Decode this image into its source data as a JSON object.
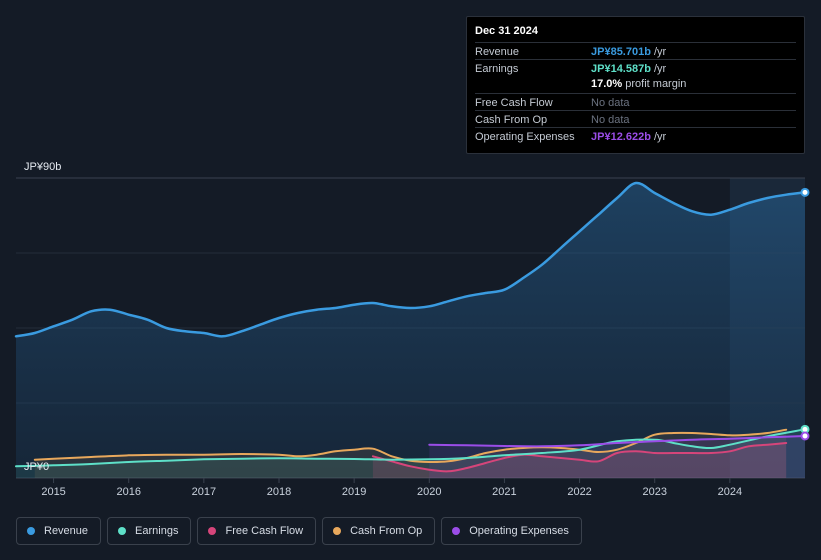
{
  "colors": {
    "revenue": "#3a9be0",
    "earnings": "#5ee0c8",
    "free_cash_flow": "#d6457a",
    "cash_from_op": "#e8a85c",
    "operating_expenses": "#9b4de8",
    "no_data": "#6b7280"
  },
  "tooltip": {
    "date": "Dec 31 2024",
    "rows": [
      {
        "label": "Revenue",
        "value": "JP¥85.701b",
        "unit": "/yr"
      },
      {
        "label": "Earnings",
        "value": "JP¥14.587b",
        "unit": "/yr"
      },
      {
        "label": "Free Cash Flow",
        "value": "No data",
        "unit": ""
      },
      {
        "label": "Cash From Op",
        "value": "No data",
        "unit": ""
      },
      {
        "label": "Operating Expenses",
        "value": "JP¥12.622b",
        "unit": "/yr"
      }
    ],
    "profit_margin": {
      "value": "17.0%",
      "label": "profit margin"
    }
  },
  "legend": [
    {
      "label": "Revenue",
      "color": "#3a9be0"
    },
    {
      "label": "Earnings",
      "color": "#5ee0c8"
    },
    {
      "label": "Free Cash Flow",
      "color": "#d6457a"
    },
    {
      "label": "Cash From Op",
      "color": "#e8a85c"
    },
    {
      "label": "Operating Expenses",
      "color": "#9b4de8"
    }
  ],
  "chart_data": {
    "type": "area",
    "title": "",
    "xlabel": "",
    "ylabel": "",
    "y_axis_labels": {
      "top": "JP¥90b",
      "bottom": "JP¥0"
    },
    "ylim": [
      0,
      90
    ],
    "xlim": [
      2014.5,
      2025.0
    ],
    "x_ticks": [
      "2015",
      "2016",
      "2017",
      "2018",
      "2019",
      "2020",
      "2021",
      "2022",
      "2023",
      "2024"
    ],
    "x_tick_values": [
      2015,
      2016,
      2017,
      2018,
      2019,
      2020,
      2021,
      2022,
      2023,
      2024
    ],
    "highlight_from": 2024.0,
    "series": [
      {
        "name": "Revenue",
        "key": "revenue",
        "x": [
          2014.5,
          2014.75,
          2015.0,
          2015.25,
          2015.5,
          2015.75,
          2016.0,
          2016.25,
          2016.5,
          2016.75,
          2017.0,
          2017.25,
          2017.5,
          2017.75,
          2018.0,
          2018.25,
          2018.5,
          2018.75,
          2019.0,
          2019.25,
          2019.5,
          2019.75,
          2020.0,
          2020.25,
          2020.5,
          2020.75,
          2021.0,
          2021.25,
          2021.5,
          2021.75,
          2022.0,
          2022.25,
          2022.5,
          2022.75,
          2023.0,
          2023.25,
          2023.5,
          2023.75,
          2024.0,
          2024.25,
          2024.5,
          2024.75,
          2025.0
        ],
        "values": [
          42.5,
          43.5,
          45.5,
          47.5,
          50.0,
          50.5,
          49.0,
          47.5,
          45.0,
          44.0,
          43.5,
          42.5,
          44.0,
          46.0,
          48.0,
          49.5,
          50.5,
          51.0,
          52.0,
          52.5,
          51.5,
          51.0,
          51.5,
          53.0,
          54.5,
          55.5,
          56.5,
          60.0,
          64.0,
          69.0,
          74.0,
          79.0,
          84.0,
          88.5,
          85.5,
          82.5,
          80.0,
          79.0,
          80.5,
          82.5,
          84.0,
          85.0,
          85.7
        ]
      },
      {
        "name": "Earnings",
        "key": "earnings",
        "x": [
          2014.5,
          2015.0,
          2015.5,
          2016.0,
          2016.5,
          2017.0,
          2017.5,
          2018.0,
          2018.5,
          2019.0,
          2019.5,
          2020.0,
          2020.5,
          2021.0,
          2021.5,
          2022.0,
          2022.5,
          2023.0,
          2023.25,
          2023.5,
          2023.75,
          2024.0,
          2024.5,
          2025.0
        ],
        "values": [
          3.5,
          3.8,
          4.2,
          4.8,
          5.2,
          5.6,
          5.8,
          5.9,
          5.8,
          5.7,
          5.5,
          5.6,
          6.0,
          6.8,
          7.5,
          8.5,
          11.0,
          11.5,
          10.5,
          9.5,
          9.0,
          10.0,
          12.5,
          14.6
        ]
      },
      {
        "name": "Free Cash Flow",
        "key": "free_cash_flow",
        "x": [
          2019.25,
          2019.5,
          2019.75,
          2020.0,
          2020.25,
          2020.5,
          2020.75,
          2021.0,
          2021.25,
          2021.5,
          2021.75,
          2022.0,
          2022.25,
          2022.5,
          2022.75,
          2023.0,
          2023.25,
          2023.5,
          2023.75,
          2024.0,
          2024.25,
          2024.5,
          2024.75
        ],
        "values": [
          6.5,
          5.0,
          3.5,
          2.5,
          2.0,
          3.0,
          4.5,
          6.0,
          7.0,
          6.5,
          6.0,
          5.5,
          5.0,
          7.5,
          8.0,
          7.5,
          7.5,
          7.5,
          7.5,
          8.0,
          9.5,
          10.0,
          10.5
        ]
      },
      {
        "name": "Cash From Op",
        "key": "cash_from_op",
        "x": [
          2014.75,
          2015.0,
          2015.5,
          2016.0,
          2016.5,
          2017.0,
          2017.5,
          2018.0,
          2018.25,
          2018.5,
          2018.75,
          2019.0,
          2019.25,
          2019.5,
          2019.75,
          2020.0,
          2020.25,
          2020.5,
          2020.75,
          2021.0,
          2021.25,
          2021.5,
          2021.75,
          2022.0,
          2022.25,
          2022.5,
          2022.75,
          2023.0,
          2023.25,
          2023.5,
          2023.75,
          2024.0,
          2024.25,
          2024.5,
          2024.75
        ],
        "values": [
          5.5,
          5.8,
          6.3,
          6.8,
          7.0,
          7.0,
          7.2,
          7.0,
          6.5,
          7.0,
          8.0,
          8.5,
          8.8,
          6.5,
          5.2,
          4.8,
          5.0,
          6.0,
          7.5,
          8.5,
          9.0,
          9.2,
          9.0,
          8.5,
          7.8,
          8.5,
          10.5,
          13.0,
          13.5,
          13.5,
          13.2,
          12.8,
          13.0,
          13.5,
          14.5
        ]
      },
      {
        "name": "Operating Expenses",
        "key": "operating_expenses",
        "x": [
          2020.0,
          2020.5,
          2021.0,
          2021.5,
          2022.0,
          2022.5,
          2023.0,
          2023.5,
          2024.0,
          2024.5,
          2025.0
        ],
        "values": [
          10.0,
          9.8,
          9.6,
          9.5,
          9.8,
          10.5,
          11.0,
          11.5,
          11.8,
          12.2,
          12.6
        ]
      }
    ]
  }
}
